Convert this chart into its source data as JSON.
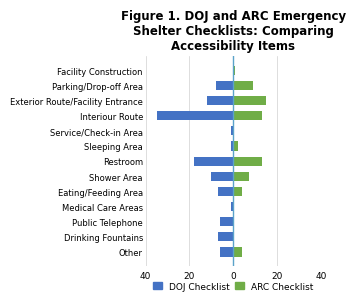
{
  "title": "Figure 1. DOJ and ARC Emergency\nShelter Checklists: Comparing\nAccessibility Items",
  "categories": [
    "Facility Construction",
    "Parking/Drop-off Area",
    "Exterior Route/Facility Entrance",
    "Interiour Route",
    "Service/Check-in Area",
    "Sleeping Area",
    "Restroom",
    "Shower Area",
    "Eating/Feeding Area",
    "Medical Care Areas",
    "Public Telephone",
    "Drinking Fountains",
    "Other"
  ],
  "doj_values": [
    0,
    -8,
    -12,
    -35,
    -1,
    -1,
    -18,
    -10,
    -7,
    -1,
    -6,
    -7,
    -6
  ],
  "arc_values": [
    1,
    9,
    15,
    13,
    0,
    2,
    13,
    7,
    4,
    0,
    0,
    0,
    4
  ],
  "doj_color": "#4472C4",
  "arc_color": "#70AD47",
  "xlim": [
    -40,
    40
  ],
  "xticks": [
    -40,
    -20,
    0,
    20,
    40
  ],
  "xticklabels": [
    "40",
    "20",
    "0",
    "20",
    "40"
  ],
  "legend_doj": "DOJ Checklist",
  "legend_arc": "ARC Checklist",
  "background_color": "#ffffff",
  "title_fontsize": 8.5,
  "label_fontsize": 6.0,
  "tick_fontsize": 6.5,
  "legend_fontsize": 6.5
}
